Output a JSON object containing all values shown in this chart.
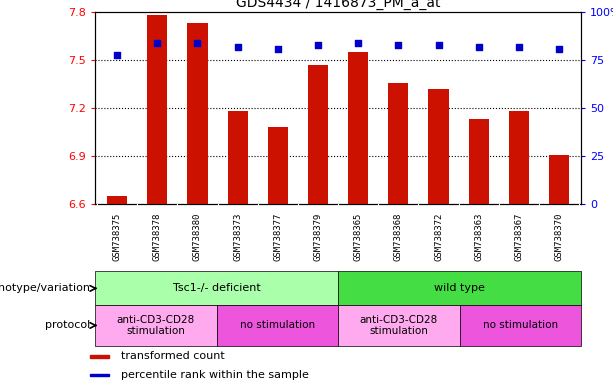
{
  "title": "GDS4434 / 1416873_PM_a_at",
  "samples": [
    "GSM738375",
    "GSM738378",
    "GSM738380",
    "GSM738373",
    "GSM738377",
    "GSM738379",
    "GSM738365",
    "GSM738368",
    "GSM738372",
    "GSM738363",
    "GSM738367",
    "GSM738370"
  ],
  "bar_values": [
    6.65,
    7.78,
    7.73,
    7.18,
    7.08,
    7.47,
    7.55,
    7.36,
    7.32,
    7.13,
    7.18,
    6.91
  ],
  "percentile_values": [
    78,
    84,
    84,
    82,
    81,
    83,
    84,
    83,
    83,
    82,
    82,
    81
  ],
  "bar_color": "#cc1100",
  "dot_color": "#0000cc",
  "ylim_left": [
    6.6,
    7.8
  ],
  "ylim_right": [
    0,
    100
  ],
  "yticks_left": [
    6.6,
    6.9,
    7.2,
    7.5,
    7.8
  ],
  "yticks_right": [
    0,
    25,
    50,
    75,
    100
  ],
  "grid_values": [
    6.9,
    7.2,
    7.5
  ],
  "genotype_groups": [
    {
      "label": "Tsc1-/- deficient",
      "start": 0,
      "end": 6,
      "color": "#aaffaa"
    },
    {
      "label": "wild type",
      "start": 6,
      "end": 12,
      "color": "#44dd44"
    }
  ],
  "protocol_groups": [
    {
      "label": "anti-CD3-CD28\nstimulation",
      "start": 0,
      "end": 3,
      "color": "#ffaaee"
    },
    {
      "label": "no stimulation",
      "start": 3,
      "end": 6,
      "color": "#ee55dd"
    },
    {
      "label": "anti-CD3-CD28\nstimulation",
      "start": 6,
      "end": 9,
      "color": "#ffaaee"
    },
    {
      "label": "no stimulation",
      "start": 9,
      "end": 12,
      "color": "#ee55dd"
    }
  ],
  "xtick_bg_color": "#cccccc",
  "legend_items": [
    {
      "label": "transformed count",
      "color": "#cc1100"
    },
    {
      "label": "percentile rank within the sample",
      "color": "#0000cc"
    }
  ],
  "label_genotype": "genotype/variation",
  "label_protocol": "protocol",
  "bar_width": 0.5
}
